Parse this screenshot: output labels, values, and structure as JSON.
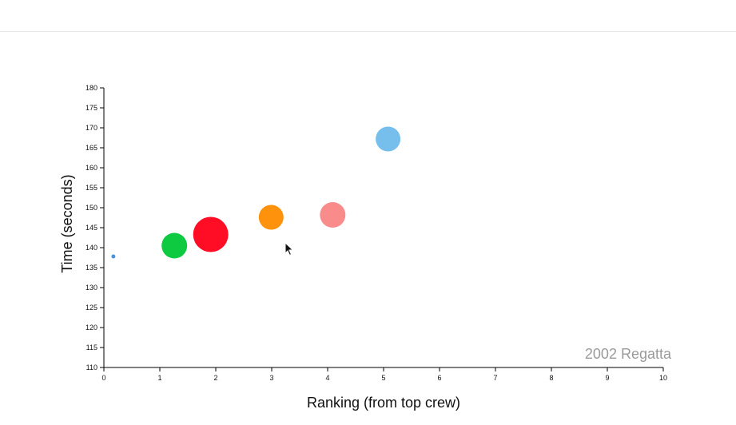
{
  "chart_data": {
    "type": "scatter",
    "title": "",
    "xlabel": "Ranking (from top crew)",
    "ylabel": "Time (seconds)",
    "xlim": [
      0,
      10
    ],
    "ylim": [
      110,
      180
    ],
    "x_ticks": [
      "0",
      "1",
      "2",
      "3",
      "4",
      "5",
      "6",
      "7",
      "8",
      "9",
      "10"
    ],
    "y_ticks": [
      "110",
      "115",
      "120",
      "125",
      "130",
      "135",
      "140",
      "145",
      "150",
      "155",
      "160",
      "165",
      "170",
      "175",
      "180"
    ],
    "annotation": "2002 Regatta",
    "grid": false,
    "points": [
      {
        "x": 0.17,
        "y": 137.8,
        "size": 2.5,
        "color": "#3b8fe0"
      },
      {
        "x": 1.26,
        "y": 140.5,
        "size": 16,
        "color": "#00c736"
      },
      {
        "x": 1.91,
        "y": 143.3,
        "size": 22,
        "color": "#ff0019"
      },
      {
        "x": 2.99,
        "y": 147.6,
        "size": 15.5,
        "color": "#ff8c00"
      },
      {
        "x": 4.09,
        "y": 148.2,
        "size": 16,
        "color": "#fa8585"
      },
      {
        "x": 5.08,
        "y": 167.2,
        "size": 15.5,
        "color": "#6fbcec"
      }
    ]
  },
  "cursor": {
    "icon": "mouse-pointer-icon"
  }
}
